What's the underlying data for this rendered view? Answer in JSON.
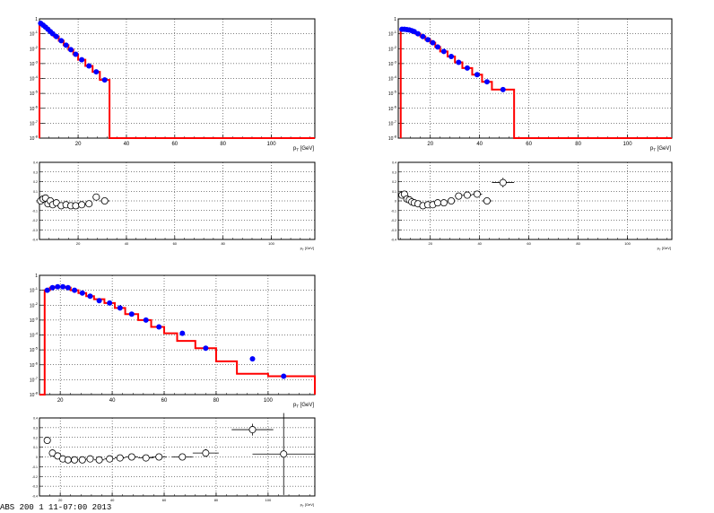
{
  "footer_text": "ABS 200 1 11-07:00 2013",
  "colors": {
    "histogram": "#ff0000",
    "data_marker": "#0000ff",
    "ratio_marker": "#000000",
    "grid": "#000000"
  },
  "chart_data": [
    {
      "id": "spectrum-1",
      "type": "scatter",
      "log_y": true,
      "grid": true,
      "xlabel": "p_T [GeV]",
      "xlim": [
        4,
        118
      ],
      "ylim": [
        1e-08,
        1
      ],
      "x_ticks": [
        20,
        40,
        60,
        80,
        100
      ],
      "y_ticks": [
        "1",
        "10^{-1}",
        "10^{-2}",
        "10^{-3}",
        "10^{-4}",
        "10^{-5}",
        "10^{-6}",
        "10^{-7}",
        "10^{-8}"
      ],
      "histogram": {
        "edges": [
          4,
          5,
          6,
          7,
          8,
          9,
          10,
          12,
          14,
          16,
          18,
          20,
          23,
          26,
          29,
          33
        ],
        "values": [
          0.5,
          0.38,
          0.28,
          0.2,
          0.14,
          0.1,
          0.065,
          0.034,
          0.017,
          0.0085,
          0.0042,
          0.0018,
          0.0007,
          0.00028,
          8e-05
        ]
      },
      "points": {
        "x": [
          4.5,
          5.5,
          6.5,
          7.5,
          8.5,
          9.5,
          11,
          13,
          15,
          17,
          19,
          21.5,
          24.5,
          27.5,
          31
        ],
        "y": [
          0.5,
          0.38,
          0.28,
          0.2,
          0.14,
          0.1,
          0.065,
          0.034,
          0.017,
          0.0085,
          0.0042,
          0.0018,
          0.0007,
          0.00028,
          8e-05
        ]
      }
    },
    {
      "id": "ratio-1",
      "type": "scatter",
      "grid": true,
      "xlabel": "p_T [GeV]",
      "xlim": [
        4,
        118
      ],
      "ylim": [
        -0.4,
        0.4
      ],
      "x_ticks": [
        20,
        40,
        60,
        80,
        100
      ],
      "y_ticks": [
        -0.4,
        -0.3,
        -0.2,
        -0.1,
        0,
        0.1,
        0.2,
        0.3,
        0.4
      ],
      "points": {
        "x": [
          4.5,
          5.5,
          6.5,
          7.5,
          8.5,
          9.5,
          11,
          13,
          15,
          17,
          19,
          21.5,
          24.5,
          27.5,
          31
        ],
        "y": [
          0.0,
          0.02,
          0.03,
          -0.03,
          0.0,
          -0.04,
          -0.02,
          -0.05,
          -0.04,
          -0.05,
          -0.05,
          -0.04,
          -0.03,
          0.04,
          0.0
        ],
        "xerr": [
          0.5,
          0.5,
          0.5,
          0.5,
          0.5,
          0.5,
          1,
          1,
          1,
          1,
          1,
          1.5,
          1.5,
          1.5,
          2
        ],
        "yerr": [
          0,
          0,
          0,
          0,
          0,
          0,
          0,
          0,
          0,
          0,
          0,
          0,
          0,
          0.02,
          0.02
        ]
      }
    },
    {
      "id": "spectrum-2",
      "type": "scatter",
      "log_y": true,
      "grid": true,
      "xlabel": "p_T [GeV]",
      "xlim": [
        7,
        118
      ],
      "ylim": [
        1e-08,
        1
      ],
      "x_ticks": [
        20,
        40,
        60,
        80,
        100
      ],
      "y_ticks": [
        "1",
        "10^{-1}",
        "10^{-2}",
        "10^{-3}",
        "10^{-4}",
        "10^{-5}",
        "10^{-6}",
        "10^{-7}",
        "10^{-8}"
      ],
      "histogram": {
        "edges": [
          8,
          9,
          10,
          11,
          12,
          13,
          14,
          16,
          18,
          20,
          22,
          24,
          27,
          30,
          33,
          37,
          41,
          45,
          54
        ],
        "values": [
          0.2,
          0.2,
          0.19,
          0.18,
          0.16,
          0.14,
          0.1,
          0.065,
          0.04,
          0.025,
          0.013,
          0.0065,
          0.003,
          0.0012,
          0.0005,
          0.00018,
          6e-05,
          1.8e-05
        ]
      },
      "points": {
        "x": [
          8.5,
          9.5,
          10.5,
          11.5,
          12.5,
          13.5,
          15,
          17,
          19,
          21,
          23,
          25.5,
          28.5,
          31.5,
          35,
          39,
          43,
          49.5
        ],
        "y": [
          0.2,
          0.2,
          0.19,
          0.18,
          0.16,
          0.14,
          0.1,
          0.065,
          0.04,
          0.025,
          0.013,
          0.0065,
          0.003,
          0.0012,
          0.0005,
          0.00018,
          6e-05,
          1.8e-05
        ]
      }
    },
    {
      "id": "ratio-2",
      "type": "scatter",
      "grid": true,
      "xlabel": "p_T [GeV]",
      "xlim": [
        7,
        118
      ],
      "ylim": [
        -0.4,
        0.4
      ],
      "x_ticks": [
        20,
        40,
        60,
        80,
        100
      ],
      "y_ticks": [
        -0.4,
        -0.3,
        -0.2,
        -0.1,
        0,
        0.1,
        0.2,
        0.3,
        0.4
      ],
      "points": {
        "x": [
          8.5,
          9.5,
          10.5,
          11.5,
          12.5,
          13.5,
          15,
          17,
          19,
          21,
          23,
          25.5,
          28.5,
          31.5,
          35,
          39,
          43,
          49.5
        ],
        "y": [
          0.06,
          0.07,
          0.02,
          0.01,
          -0.01,
          -0.02,
          -0.03,
          -0.05,
          -0.04,
          -0.04,
          -0.02,
          -0.02,
          0.0,
          0.05,
          0.06,
          0.07,
          0.0,
          0.19
        ],
        "xerr": [
          0.5,
          0.5,
          0.5,
          0.5,
          0.5,
          0.5,
          1,
          1,
          1,
          1,
          1,
          1.5,
          1.5,
          1.5,
          2,
          2,
          2,
          4.5
        ],
        "yerr": [
          0,
          0,
          0,
          0,
          0,
          0,
          0,
          0,
          0,
          0,
          0,
          0,
          0,
          0.02,
          0.02,
          0.03,
          0.03,
          0.05
        ]
      }
    },
    {
      "id": "spectrum-3",
      "type": "scatter",
      "log_y": true,
      "grid": true,
      "xlabel": "p_T [GeV]",
      "xlim": [
        12,
        118
      ],
      "ylim": [
        1e-08,
        1
      ],
      "x_ticks": [
        20,
        40,
        60,
        80,
        100
      ],
      "y_ticks": [
        "1",
        "10^{-1}",
        "10^{-2}",
        "10^{-3}",
        "10^{-4}",
        "10^{-5}",
        "10^{-6}",
        "10^{-7}",
        "10^{-8}"
      ],
      "histogram": {
        "edges": [
          12,
          14,
          16,
          18,
          20,
          22,
          24,
          27,
          30,
          33,
          37,
          41,
          45,
          50,
          55,
          60,
          65,
          72,
          80,
          88,
          100,
          118
        ],
        "values": [
          1e-08,
          0.1,
          0.15,
          0.17,
          0.17,
          0.15,
          0.1,
          0.065,
          0.04,
          0.025,
          0.014,
          0.0065,
          0.0025,
          0.001,
          0.00035,
          0.00013,
          4e-05,
          1.3e-05,
          1.7e-06,
          2.5e-07,
          1.7e-07
        ]
      },
      "points": {
        "x": [
          15,
          17,
          19,
          21,
          23,
          25.5,
          28.5,
          31.5,
          35,
          39,
          43,
          47.5,
          53,
          58,
          67,
          76,
          94,
          106
        ],
        "y": [
          0.1,
          0.15,
          0.17,
          0.17,
          0.15,
          0.1,
          0.065,
          0.04,
          0.02,
          0.014,
          0.0065,
          0.0025,
          0.001,
          0.00035,
          0.00013,
          1.3e-05,
          2.5e-06,
          1.7e-07
        ]
      }
    },
    {
      "id": "ratio-3",
      "type": "scatter",
      "grid": true,
      "xlabel": "p_T [GeV]",
      "xlim": [
        12,
        118
      ],
      "ylim": [
        -0.4,
        0.4
      ],
      "x_ticks": [
        20,
        40,
        60,
        80,
        100
      ],
      "y_ticks": [
        -0.4,
        -0.3,
        -0.2,
        -0.1,
        0,
        0.1,
        0.2,
        0.3,
        0.4
      ],
      "points": {
        "x": [
          15,
          17,
          19,
          21,
          23,
          25.5,
          28.5,
          31.5,
          35,
          39,
          43,
          47.5,
          53,
          58,
          67,
          76,
          94,
          106
        ],
        "y": [
          0.17,
          0.04,
          0.01,
          -0.02,
          -0.03,
          -0.03,
          -0.03,
          -0.02,
          -0.03,
          -0.02,
          -0.01,
          0.0,
          -0.01,
          0.0,
          0.0,
          0.04,
          0.28,
          0.03
        ],
        "xerr": [
          1,
          1,
          1,
          1,
          1,
          1.5,
          1.5,
          1.5,
          2,
          2,
          2,
          2.5,
          3,
          3,
          4,
          5,
          8,
          12
        ],
        "yerr": [
          0.01,
          0,
          0,
          0,
          0,
          0,
          0,
          0.01,
          0.01,
          0.01,
          0.01,
          0.01,
          0.01,
          0.02,
          0.02,
          0.04,
          0.06,
          0.42
        ]
      }
    }
  ]
}
